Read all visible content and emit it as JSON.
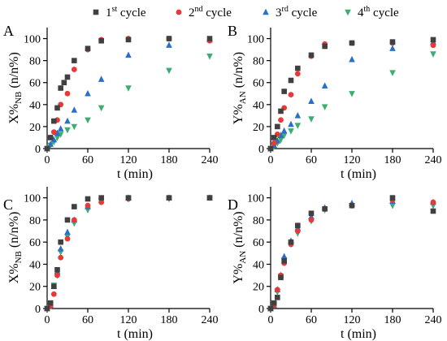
{
  "legend": [
    {
      "base": "1",
      "sup": "st",
      "word": " cycle",
      "color": "#404040",
      "marker": "square"
    },
    {
      "base": "2",
      "sup": "nd",
      "word": " cycle",
      "color": "#e8393a",
      "marker": "circle"
    },
    {
      "base": "3",
      "sup": "rd",
      "word": " cycle",
      "color": "#2a6fc9",
      "marker": "triangle-up"
    },
    {
      "base": "4",
      "sup": "th",
      "word": " cycle",
      "color": "#3dae72",
      "marker": "triangle-down"
    }
  ],
  "chart_data": [
    {
      "panel": "A",
      "type": "scatter",
      "xlabel": "t (min)",
      "ylabel_main": "X%",
      "ylabel_sub": "NB",
      "ylabel_rest": " (n/n%)",
      "xlim": [
        0,
        240
      ],
      "ylim": [
        0,
        110
      ],
      "xticks": [
        0,
        60,
        120,
        180,
        240
      ],
      "yticks": [
        0,
        20,
        40,
        60,
        80,
        100
      ],
      "series": [
        {
          "x": [
            0,
            5,
            10,
            15,
            20,
            25,
            30,
            40,
            60,
            80,
            120,
            180,
            240
          ],
          "y": [
            0,
            10,
            25,
            37,
            55,
            60,
            65,
            80,
            91,
            98,
            99,
            100,
            100
          ]
        },
        {
          "x": [
            0,
            5,
            10,
            15,
            20,
            30,
            40,
            60,
            80,
            120,
            180,
            240
          ],
          "y": [
            0,
            10,
            15,
            26,
            40,
            50,
            72,
            90,
            99,
            100,
            100,
            98
          ]
        },
        {
          "x": [
            0,
            5,
            10,
            15,
            20,
            30,
            40,
            60,
            80,
            120,
            180,
            240
          ],
          "y": [
            0,
            4,
            8,
            14,
            18,
            25,
            35,
            50,
            63,
            85,
            94,
            99
          ]
        },
        {
          "x": [
            0,
            5,
            10,
            15,
            20,
            30,
            40,
            60,
            80,
            120,
            180,
            240
          ],
          "y": [
            0,
            3,
            6,
            10,
            13,
            17,
            20,
            26,
            37,
            55,
            71,
            84
          ]
        }
      ]
    },
    {
      "panel": "B",
      "type": "scatter",
      "xlabel": "t (min)",
      "ylabel_main": "Y%",
      "ylabel_sub": "AN",
      "ylabel_rest": " (n/n%)",
      "xlim": [
        0,
        240
      ],
      "ylim": [
        0,
        110
      ],
      "xticks": [
        0,
        60,
        120,
        180,
        240
      ],
      "yticks": [
        0,
        20,
        40,
        60,
        80,
        100
      ],
      "series": [
        {
          "x": [
            0,
            5,
            10,
            15,
            20,
            30,
            40,
            60,
            80,
            120,
            180,
            240
          ],
          "y": [
            0,
            10,
            20,
            34,
            52,
            62,
            73,
            85,
            93,
            96,
            97,
            99
          ]
        },
        {
          "x": [
            0,
            5,
            10,
            15,
            20,
            30,
            40,
            60,
            80,
            120,
            180,
            240
          ],
          "y": [
            0,
            5,
            13,
            26,
            37,
            49,
            68,
            84,
            95,
            96,
            96,
            94
          ]
        },
        {
          "x": [
            0,
            5,
            10,
            15,
            20,
            30,
            40,
            60,
            80,
            120,
            180,
            240
          ],
          "y": [
            0,
            3,
            7,
            12,
            16,
            22,
            30,
            43,
            57,
            81,
            91,
            97
          ]
        },
        {
          "x": [
            0,
            5,
            10,
            15,
            20,
            30,
            40,
            60,
            80,
            120,
            180,
            240
          ],
          "y": [
            0,
            2,
            5,
            8,
            12,
            16,
            21,
            27,
            38,
            50,
            69,
            86
          ]
        }
      ]
    },
    {
      "panel": "C",
      "type": "scatter",
      "xlabel": "t (min)",
      "ylabel_main": "X%",
      "ylabel_sub": "NB",
      "ylabel_rest": " (n/n%)",
      "xlim": [
        0,
        240
      ],
      "ylim": [
        0,
        110
      ],
      "xticks": [
        0,
        60,
        120,
        180,
        240
      ],
      "yticks": [
        0,
        20,
        40,
        60,
        80,
        100
      ],
      "series": [
        {
          "x": [
            0,
            5,
            10,
            15,
            20,
            30,
            40,
            60,
            80,
            120,
            180,
            240
          ],
          "y": [
            0,
            5,
            20,
            35,
            60,
            80,
            92,
            99,
            100,
            100,
            100,
            100
          ]
        },
        {
          "x": [
            0,
            5,
            10,
            15,
            20,
            30,
            40,
            60,
            80,
            120,
            180,
            240
          ],
          "y": [
            0,
            2,
            13,
            30,
            46,
            63,
            80,
            93,
            96,
            99,
            100,
            100
          ]
        },
        {
          "x": [
            0,
            5,
            10,
            15,
            20,
            30,
            40,
            60,
            80,
            120,
            180,
            240
          ],
          "y": [
            0,
            3,
            20,
            33,
            54,
            69,
            80,
            92,
            98,
            100,
            100,
            100
          ]
        },
        {
          "x": [
            0,
            5,
            10,
            15,
            20,
            30,
            40,
            60,
            80,
            120,
            180,
            240
          ],
          "y": [
            0,
            3,
            21,
            30,
            51,
            65,
            77,
            89,
            97,
            99,
            99,
            100
          ]
        }
      ]
    },
    {
      "panel": "D",
      "type": "scatter",
      "xlabel": "t (min)",
      "ylabel_main": "Y%",
      "ylabel_sub": "AN",
      "ylabel_rest": " (n/n%)",
      "xlim": [
        0,
        240
      ],
      "ylim": [
        0,
        110
      ],
      "xticks": [
        0,
        60,
        120,
        180,
        240
      ],
      "yticks": [
        0,
        20,
        40,
        60,
        80,
        100
      ],
      "series": [
        {
          "x": [
            0,
            5,
            10,
            15,
            20,
            30,
            40,
            60,
            80,
            120,
            180,
            240
          ],
          "y": [
            0,
            5,
            10,
            28,
            43,
            60,
            75,
            86,
            90,
            93,
            100,
            88
          ]
        },
        {
          "x": [
            0,
            5,
            10,
            15,
            20,
            30,
            40,
            60,
            80,
            120,
            180,
            240
          ],
          "y": [
            0,
            3,
            17,
            30,
            41,
            58,
            70,
            80,
            90,
            93,
            98,
            96
          ]
        },
        {
          "x": [
            0,
            5,
            10,
            15,
            20,
            30,
            40,
            60,
            80,
            120,
            180,
            240
          ],
          "y": [
            0,
            3,
            17,
            30,
            47,
            61,
            73,
            83,
            91,
            95,
            97,
            96
          ]
        },
        {
          "x": [
            0,
            5,
            10,
            15,
            20,
            30,
            40,
            60,
            80,
            120,
            180,
            240
          ],
          "y": [
            0,
            3,
            15,
            29,
            44,
            58,
            68,
            79,
            89,
            93,
            93,
            93
          ]
        }
      ]
    }
  ]
}
